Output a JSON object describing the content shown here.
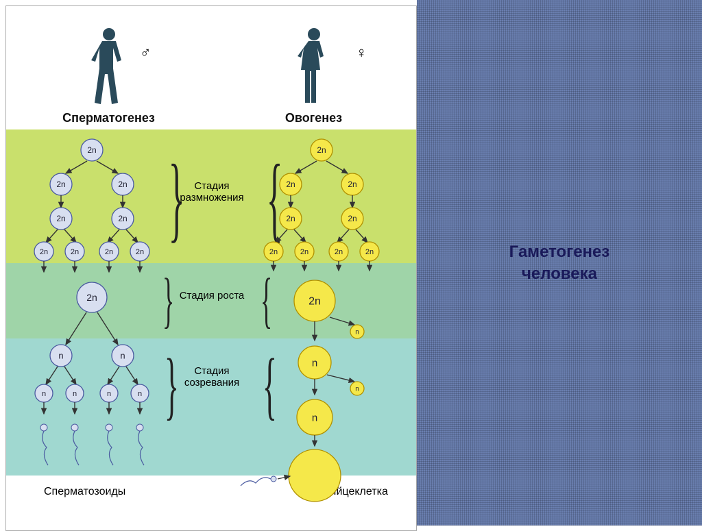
{
  "side_title_line1": "Гаметогенез",
  "side_title_line2": "человека",
  "columns": {
    "left": {
      "title": "Сперматогенез",
      "symbol": "♂",
      "final_label": "Сперматозоиды"
    },
    "right": {
      "title": "Овогенез",
      "symbol": "♀",
      "final_label": "Яйцеклетка"
    }
  },
  "stages": {
    "s1": "Стадия размножения",
    "s2": "Стадия роста",
    "s3": "Стадия созревания"
  },
  "cell_labels": {
    "diploid": "2n",
    "haploid": "n"
  },
  "colors": {
    "band1": "#c9e06c",
    "band2": "#9fd4a8",
    "band3": "#a0d8d0",
    "male_fill": "#d8dff0",
    "male_stroke": "#4a5aa0",
    "female_fill": "#f5e84a",
    "female_stroke": "#b09000",
    "figure": "#2a4a5a",
    "arrow": "#333333",
    "text": "#111111",
    "side_bg": "#6a7fb0",
    "side_text": "#1a1a5a"
  },
  "sizes": {
    "cell_radius_small": 16,
    "cell_radius_growth_male": 22,
    "cell_radius_growth_female": 30,
    "cell_radius_polar": 10,
    "cell_radius_egg": 38,
    "title_fontsize": 18,
    "stage_fontsize": 15,
    "side_title_fontsize": 24
  }
}
